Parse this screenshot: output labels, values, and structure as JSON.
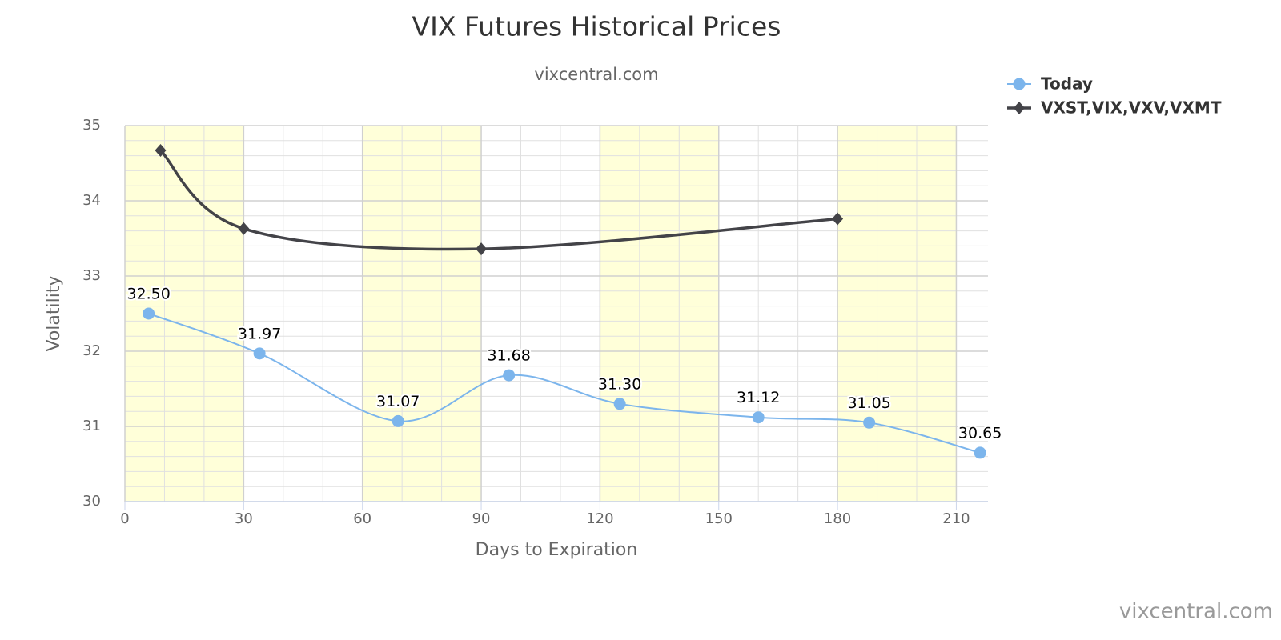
{
  "chart_data": {
    "type": "line",
    "title": "VIX Futures Historical Prices",
    "subtitle": "vixcentral.com",
    "credits": "vixcentral.com",
    "xlabel": "Days to Expiration",
    "ylabel": "Volatility",
    "xlim": [
      0,
      218
    ],
    "xticks": [
      0,
      30,
      60,
      90,
      120,
      150,
      180,
      210
    ],
    "ylim": [
      30,
      35
    ],
    "yticks": [
      30,
      31,
      32,
      33,
      34,
      35
    ],
    "grid": true,
    "x_minor_step": 10,
    "y_minor_step": 0.2,
    "plot_bands": [
      [
        0,
        30
      ],
      [
        60,
        90
      ],
      [
        120,
        150
      ],
      [
        180,
        210
      ]
    ],
    "band_color": "#ffffd9",
    "legend": "top-right",
    "series": [
      {
        "name": "Today",
        "color": "#7cb5ec",
        "marker": "circle",
        "x": [
          6,
          34,
          69,
          97,
          125,
          160,
          188,
          216
        ],
        "values": [
          32.5,
          31.97,
          31.07,
          31.68,
          31.3,
          31.12,
          31.05,
          30.65
        ],
        "value_labels": [
          "32.50",
          "31.97",
          "31.07",
          "31.68",
          "31.30",
          "31.12",
          "31.05",
          "30.65"
        ]
      },
      {
        "name": "VXST,VIX,VXV,VXMT",
        "color": "#434348",
        "marker": "diamond",
        "x": [
          9,
          30,
          90,
          180
        ],
        "values": [
          34.67,
          33.63,
          33.36,
          33.76
        ]
      }
    ]
  }
}
